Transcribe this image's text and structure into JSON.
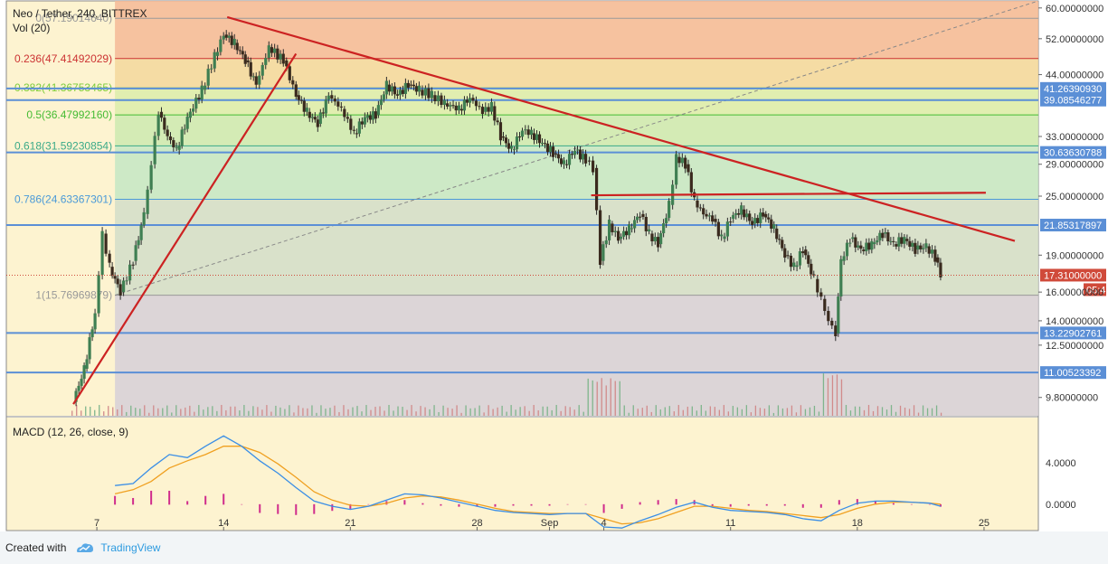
{
  "header": {
    "title": "Neo / Tether, 240, BITTREX",
    "volume_label": "Vol (20)",
    "macd_label": "MACD (12, 26, close, 9)"
  },
  "footer": {
    "created_with": "Created with",
    "brand": "TradingView"
  },
  "colors": {
    "background": "#fdf3d0",
    "up_candle": "#3f7f52",
    "down_candle": "#3a2a1e",
    "trend_line": "#cc2222",
    "hline": "#5b8fd6",
    "macd_line": "#3a8ee6",
    "signal_line": "#f0a020",
    "histogram": "#d02c8c",
    "price_badge": "#d04a3a",
    "hline_badge": "#5b8fd6"
  },
  "chart_data": {
    "type": "candlestick",
    "y_scale": "log",
    "ylim": [
      9,
      62
    ],
    "x_axis": {
      "tick_labels": [
        "7",
        "14",
        "21",
        "28",
        "Sep",
        "4",
        "11",
        "18",
        "25"
      ],
      "tick_days": [
        7,
        14,
        21,
        28,
        32,
        35,
        42,
        49,
        56
      ],
      "xlim_days": [
        2,
        59
      ]
    },
    "y_tick_labels": [
      "60.00000000",
      "52.00000000",
      "44.00000000",
      "33.00000000",
      "29.00000000",
      "25.00000000",
      "19.00000000",
      "16.00000000",
      "14.00000000",
      "12.50000000",
      "9.80000000"
    ],
    "y_tick_values": [
      60,
      52,
      44,
      33,
      29,
      25,
      19,
      16,
      14,
      12.5,
      9.8
    ],
    "price_path": [
      {
        "day": 5.7,
        "close": 9.6
      },
      {
        "day": 6.3,
        "close": 11.2
      },
      {
        "day": 6.9,
        "close": 14.5
      },
      {
        "day": 7.3,
        "close": 21.0
      },
      {
        "day": 7.7,
        "close": 18.0
      },
      {
        "day": 8.3,
        "close": 16.0
      },
      {
        "day": 9.0,
        "close": 18.5
      },
      {
        "day": 9.6,
        "close": 23.0
      },
      {
        "day": 10.0,
        "close": 29.0
      },
      {
        "day": 10.4,
        "close": 37.0
      },
      {
        "day": 10.9,
        "close": 33.0
      },
      {
        "day": 11.4,
        "close": 31.0
      },
      {
        "day": 12.0,
        "close": 36.0
      },
      {
        "day": 12.8,
        "close": 41.0
      },
      {
        "day": 13.5,
        "close": 48.0
      },
      {
        "day": 14.0,
        "close": 53.0
      },
      {
        "day": 14.6,
        "close": 51.0
      },
      {
        "day": 15.2,
        "close": 47.0
      },
      {
        "day": 15.8,
        "close": 42.0
      },
      {
        "day": 16.5,
        "close": 50.0
      },
      {
        "day": 17.3,
        "close": 47.0
      },
      {
        "day": 18.0,
        "close": 40.0
      },
      {
        "day": 18.6,
        "close": 37.0
      },
      {
        "day": 19.2,
        "close": 35.0
      },
      {
        "day": 19.8,
        "close": 40.0
      },
      {
        "day": 20.5,
        "close": 37.5
      },
      {
        "day": 21.2,
        "close": 33.5
      },
      {
        "day": 21.8,
        "close": 36.0
      },
      {
        "day": 22.4,
        "close": 36.5
      },
      {
        "day": 23.0,
        "close": 42.0
      },
      {
        "day": 23.6,
        "close": 40.0
      },
      {
        "day": 24.2,
        "close": 42.0
      },
      {
        "day": 24.8,
        "close": 41.0
      },
      {
        "day": 25.5,
        "close": 40.0
      },
      {
        "day": 26.2,
        "close": 38.5
      },
      {
        "day": 27.0,
        "close": 37.5
      },
      {
        "day": 27.6,
        "close": 39.5
      },
      {
        "day": 28.3,
        "close": 37.0
      },
      {
        "day": 28.8,
        "close": 38.0
      },
      {
        "day": 29.3,
        "close": 33.0
      },
      {
        "day": 29.9,
        "close": 31.0
      },
      {
        "day": 30.5,
        "close": 34.0
      },
      {
        "day": 31.0,
        "close": 33.5
      },
      {
        "day": 31.6,
        "close": 32.0
      },
      {
        "day": 32.2,
        "close": 30.5
      },
      {
        "day": 32.8,
        "close": 29.0
      },
      {
        "day": 33.4,
        "close": 31.0
      },
      {
        "day": 34.0,
        "close": 29.5
      },
      {
        "day": 34.4,
        "close": 28.5
      },
      {
        "day": 34.8,
        "close": 18.5
      },
      {
        "day": 35.3,
        "close": 22.0
      },
      {
        "day": 35.8,
        "close": 20.5
      },
      {
        "day": 36.4,
        "close": 21.5
      },
      {
        "day": 37.0,
        "close": 23.0
      },
      {
        "day": 37.5,
        "close": 21.0
      },
      {
        "day": 38.0,
        "close": 20.0
      },
      {
        "day": 38.6,
        "close": 24.0
      },
      {
        "day": 39.0,
        "close": 30.0
      },
      {
        "day": 39.5,
        "close": 29.0
      },
      {
        "day": 40.0,
        "close": 24.5
      },
      {
        "day": 40.5,
        "close": 23.0
      },
      {
        "day": 41.0,
        "close": 22.5
      },
      {
        "day": 41.5,
        "close": 20.5
      },
      {
        "day": 42.0,
        "close": 22.5
      },
      {
        "day": 42.6,
        "close": 23.5
      },
      {
        "day": 43.2,
        "close": 22.0
      },
      {
        "day": 43.8,
        "close": 23.0
      },
      {
        "day": 44.4,
        "close": 21.5
      },
      {
        "day": 45.0,
        "close": 19.0
      },
      {
        "day": 45.5,
        "close": 18.0
      },
      {
        "day": 46.0,
        "close": 19.5
      },
      {
        "day": 46.6,
        "close": 17.0
      },
      {
        "day": 47.0,
        "close": 15.5
      },
      {
        "day": 47.4,
        "close": 14.0
      },
      {
        "day": 47.8,
        "close": 13.2
      },
      {
        "day": 48.1,
        "close": 18.5
      },
      {
        "day": 48.6,
        "close": 20.5
      },
      {
        "day": 49.2,
        "close": 19.5
      },
      {
        "day": 49.8,
        "close": 20.0
      },
      {
        "day": 50.4,
        "close": 21.0
      },
      {
        "day": 51.0,
        "close": 20.0
      },
      {
        "day": 51.6,
        "close": 20.5
      },
      {
        "day": 52.2,
        "close": 19.5
      },
      {
        "day": 52.8,
        "close": 19.8
      },
      {
        "day": 53.3,
        "close": 18.8
      },
      {
        "day": 53.6,
        "close": 17.3
      }
    ],
    "fib_retracement": {
      "start_day": 8.0,
      "end_day": 59,
      "levels": [
        {
          "ratio": "0",
          "price": 57.1901464,
          "label": "0(57.19014640)",
          "fill": "#f4b896",
          "line": "#9a9a9a"
        },
        {
          "ratio": "0.236",
          "price": 47.41492029,
          "label": "0.236(47.41492029)",
          "fill": "#f3d79c",
          "line": "#cc3333"
        },
        {
          "ratio": "0.382",
          "price": 41.36753465,
          "label": "0.382(41.36753465)",
          "fill": "#dcecaa",
          "line": "#7ccc3a"
        },
        {
          "ratio": "0.5",
          "price": 36.4799216,
          "label": "0.5(36.47992160)",
          "fill": "#cce9b0",
          "line": "#44bb33"
        },
        {
          "ratio": "0.618",
          "price": 31.59230854,
          "label": "0.618(31.59230854)",
          "fill": "#c4e6c4",
          "line": "#3aaa88"
        },
        {
          "ratio": "0.786",
          "price": 24.63367301,
          "label": "0.786(24.63367301)",
          "fill": "#d2ddc9",
          "line": "#4a9ad8"
        },
        {
          "ratio": "1",
          "price": 15.76969879,
          "label": "1(15.76969879)",
          "fill": "#d6cfd8",
          "line": "#999999"
        }
      ]
    },
    "horizontal_lines": [
      {
        "price": 41.2639093,
        "label": "41.26390930"
      },
      {
        "price": 39.08546277,
        "label": "39.08546277"
      },
      {
        "price": 30.63630788,
        "label": "30.63630788"
      },
      {
        "price": 21.85317897,
        "label": "21.85317897"
      },
      {
        "price": 13.22902761,
        "label": "13.22902761"
      },
      {
        "price": 11.00523392,
        "label": "11.00523392"
      }
    ],
    "last_price": {
      "price": 17.31,
      "label": "17.31000000",
      "countdown": "05:47"
    },
    "trend_lines": [
      {
        "from": {
          "day": 5.7,
          "price": 9.5
        },
        "to": {
          "day": 18.0,
          "price": 48.5
        }
      },
      {
        "from": {
          "day": 14.2,
          "price": 57.5
        },
        "to": {
          "day": 57.7,
          "price": 20.3
        }
      },
      {
        "from": {
          "day": 34.3,
          "price": 25.1
        },
        "to": {
          "day": 56.1,
          "price": 25.4
        }
      }
    ],
    "dashed_line": {
      "from": {
        "day": 8.0,
        "price": 15.77
      },
      "to": {
        "day": 59,
        "price": 62
      }
    },
    "macd": {
      "ylim": [
        -0.8,
        7.5
      ],
      "y_tick_labels": [
        "4.0000",
        "0.0000"
      ],
      "y_tick_values": [
        4,
        0
      ],
      "macd_line": [
        {
          "day": 8.0,
          "value": 1.8
        },
        {
          "day": 9.0,
          "value": 2.0
        },
        {
          "day": 10.0,
          "value": 3.5
        },
        {
          "day": 11.0,
          "value": 4.8
        },
        {
          "day": 12.0,
          "value": 4.5
        },
        {
          "day": 13.0,
          "value": 5.6
        },
        {
          "day": 14.0,
          "value": 6.6
        },
        {
          "day": 15.0,
          "value": 5.6
        },
        {
          "day": 16.0,
          "value": 4.2
        },
        {
          "day": 17.0,
          "value": 3.0
        },
        {
          "day": 18.0,
          "value": 1.6
        },
        {
          "day": 19.0,
          "value": 0.3
        },
        {
          "day": 20.0,
          "value": -0.2
        },
        {
          "day": 21.0,
          "value": -0.5
        },
        {
          "day": 22.0,
          "value": -0.2
        },
        {
          "day": 23.0,
          "value": 0.4
        },
        {
          "day": 24.0,
          "value": 1.0
        },
        {
          "day": 25.0,
          "value": 0.9
        },
        {
          "day": 26.0,
          "value": 0.6
        },
        {
          "day": 27.0,
          "value": 0.2
        },
        {
          "day": 28.0,
          "value": -0.2
        },
        {
          "day": 29.0,
          "value": -0.6
        },
        {
          "day": 30.0,
          "value": -0.8
        },
        {
          "day": 31.0,
          "value": -0.9
        },
        {
          "day": 32.0,
          "value": -1.0
        },
        {
          "day": 33.0,
          "value": -0.9
        },
        {
          "day": 34.0,
          "value": -0.9
        },
        {
          "day": 35.0,
          "value": -2.2
        },
        {
          "day": 36.0,
          "value": -2.3
        },
        {
          "day": 37.0,
          "value": -1.6
        },
        {
          "day": 38.0,
          "value": -1.0
        },
        {
          "day": 39.0,
          "value": -0.3
        },
        {
          "day": 40.0,
          "value": 0.2
        },
        {
          "day": 41.0,
          "value": -0.3
        },
        {
          "day": 42.0,
          "value": -0.6
        },
        {
          "day": 43.0,
          "value": -0.7
        },
        {
          "day": 44.0,
          "value": -0.8
        },
        {
          "day": 45.0,
          "value": -1.0
        },
        {
          "day": 46.0,
          "value": -1.4
        },
        {
          "day": 47.0,
          "value": -1.6
        },
        {
          "day": 48.0,
          "value": -0.6
        },
        {
          "day": 49.0,
          "value": 0.1
        },
        {
          "day": 50.0,
          "value": 0.3
        },
        {
          "day": 51.0,
          "value": 0.3
        },
        {
          "day": 52.0,
          "value": 0.2
        },
        {
          "day": 53.0,
          "value": 0.1
        },
        {
          "day": 53.6,
          "value": -0.2
        }
      ],
      "signal_line": [
        {
          "day": 8.0,
          "value": 1.0
        },
        {
          "day": 9.0,
          "value": 1.4
        },
        {
          "day": 10.0,
          "value": 2.2
        },
        {
          "day": 11.0,
          "value": 3.5
        },
        {
          "day": 12.0,
          "value": 4.2
        },
        {
          "day": 13.0,
          "value": 4.8
        },
        {
          "day": 14.0,
          "value": 5.6
        },
        {
          "day": 15.0,
          "value": 5.6
        },
        {
          "day": 16.0,
          "value": 5.0
        },
        {
          "day": 17.0,
          "value": 3.9
        },
        {
          "day": 18.0,
          "value": 2.6
        },
        {
          "day": 19.0,
          "value": 1.2
        },
        {
          "day": 20.0,
          "value": 0.4
        },
        {
          "day": 21.0,
          "value": -0.1
        },
        {
          "day": 22.0,
          "value": -0.2
        },
        {
          "day": 23.0,
          "value": 0.1
        },
        {
          "day": 24.0,
          "value": 0.6
        },
        {
          "day": 25.0,
          "value": 0.8
        },
        {
          "day": 26.0,
          "value": 0.7
        },
        {
          "day": 27.0,
          "value": 0.4
        },
        {
          "day": 28.0,
          "value": 0.0
        },
        {
          "day": 29.0,
          "value": -0.4
        },
        {
          "day": 30.0,
          "value": -0.7
        },
        {
          "day": 31.0,
          "value": -0.8
        },
        {
          "day": 32.0,
          "value": -0.9
        },
        {
          "day": 33.0,
          "value": -0.9
        },
        {
          "day": 34.0,
          "value": -0.9
        },
        {
          "day": 35.0,
          "value": -1.4
        },
        {
          "day": 36.0,
          "value": -1.9
        },
        {
          "day": 37.0,
          "value": -1.8
        },
        {
          "day": 38.0,
          "value": -1.4
        },
        {
          "day": 39.0,
          "value": -0.8
        },
        {
          "day": 40.0,
          "value": -0.2
        },
        {
          "day": 41.0,
          "value": -0.2
        },
        {
          "day": 42.0,
          "value": -0.4
        },
        {
          "day": 43.0,
          "value": -0.6
        },
        {
          "day": 44.0,
          "value": -0.7
        },
        {
          "day": 45.0,
          "value": -0.9
        },
        {
          "day": 46.0,
          "value": -1.1
        },
        {
          "day": 47.0,
          "value": -1.3
        },
        {
          "day": 48.0,
          "value": -1.0
        },
        {
          "day": 49.0,
          "value": -0.4
        },
        {
          "day": 50.0,
          "value": 0.0
        },
        {
          "day": 51.0,
          "value": 0.2
        },
        {
          "day": 52.0,
          "value": 0.2
        },
        {
          "day": 53.0,
          "value": 0.1
        },
        {
          "day": 53.6,
          "value": 0.0
        }
      ]
    }
  }
}
